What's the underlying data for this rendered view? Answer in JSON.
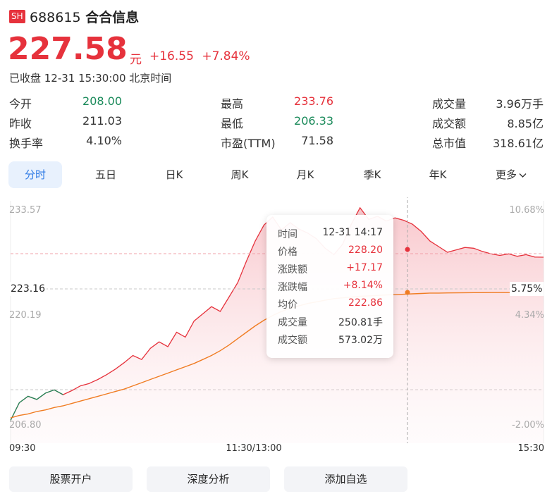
{
  "header": {
    "exchange_badge": "SH",
    "code": "688615",
    "name": "合合信息",
    "price": "227.58",
    "unit": "元",
    "change": "+16.55",
    "change_pct": "+7.84%",
    "status": "已收盘 12-31 15:30:00 北京时间"
  },
  "stats": [
    {
      "label": "今开",
      "value": "208.00",
      "tone": "down"
    },
    {
      "label": "最高",
      "value": "233.76",
      "tone": "up"
    },
    {
      "label": "成交量",
      "value": "3.96万手",
      "tone": "neutral"
    },
    {
      "label": "昨收",
      "value": "211.03",
      "tone": "neutral"
    },
    {
      "label": "最低",
      "value": "206.33",
      "tone": "down"
    },
    {
      "label": "成交额",
      "value": "8.85亿",
      "tone": "neutral"
    },
    {
      "label": "换手率",
      "value": "4.10%",
      "tone": "neutral"
    },
    {
      "label": "市盈(TTM)",
      "value": "71.58",
      "tone": "neutral"
    },
    {
      "label": "总市值",
      "value": "318.61亿",
      "tone": "neutral"
    }
  ],
  "tabs": [
    {
      "label": "分时",
      "active": true
    },
    {
      "label": "五日",
      "active": false
    },
    {
      "label": "日K",
      "active": false
    },
    {
      "label": "周K",
      "active": false
    },
    {
      "label": "月K",
      "active": false
    },
    {
      "label": "季K",
      "active": false
    },
    {
      "label": "年K",
      "active": false
    },
    {
      "label": "更多",
      "active": false
    }
  ],
  "chart_data": {
    "type": "line",
    "y_left_ticks": [
      "233.57",
      "220.19",
      "206.80"
    ],
    "y_right_ticks": [
      "10.68%",
      "4.34%",
      "-2.00%"
    ],
    "x_ticks": [
      "09:30",
      "11:30/13:00",
      "15:30"
    ],
    "ylim": [
      206.8,
      233.57
    ],
    "prev_close": 211.03,
    "crosshair_price_label": "223.16",
    "crosshair_pct_label": "5.75%",
    "series": [
      {
        "name": "价格",
        "color": "#e6323c",
        "values": [
          207.2,
          209.4,
          210.2,
          209.8,
          210.6,
          211.0,
          210.4,
          210.9,
          211.5,
          211.8,
          212.3,
          212.9,
          213.6,
          214.4,
          215.3,
          214.8,
          216.2,
          217.0,
          216.4,
          218.2,
          217.6,
          219.6,
          220.5,
          221.4,
          220.8,
          222.6,
          224.4,
          227.1,
          229.6,
          231.6,
          232.6,
          231.0,
          231.9,
          231.1,
          230.6,
          229.9,
          228.7,
          227.9,
          229.2,
          231.7,
          233.76,
          232.3,
          232.7,
          232.1,
          232.5,
          232.2,
          231.7,
          230.8,
          229.6,
          228.9,
          228.2,
          228.5,
          228.8,
          228.7,
          228.3,
          228.0,
          227.8,
          228.0,
          227.7,
          227.9,
          227.6,
          227.58
        ]
      },
      {
        "name": "均价",
        "color": "#f07c22",
        "values": [
          207.5,
          207.8,
          208.0,
          208.3,
          208.5,
          208.8,
          209.0,
          209.3,
          209.6,
          209.9,
          210.2,
          210.5,
          210.8,
          211.1,
          211.5,
          211.9,
          212.3,
          212.7,
          213.1,
          213.5,
          213.9,
          214.3,
          214.8,
          215.3,
          215.9,
          216.6,
          217.4,
          218.2,
          219.0,
          219.7,
          220.3,
          220.8,
          221.2,
          221.5,
          221.8,
          222.0,
          222.2,
          222.4,
          222.5,
          222.6,
          222.7,
          222.75,
          222.8,
          222.86,
          222.9,
          222.95,
          223.0,
          223.05,
          223.1,
          223.1,
          223.12,
          223.13,
          223.14,
          223.15,
          223.15,
          223.16,
          223.16,
          223.16,
          223.16,
          223.16,
          223.16,
          223.16
        ]
      }
    ]
  },
  "tooltip": [
    {
      "label": "时间",
      "value": "12-31 14:17",
      "tone": "neutral"
    },
    {
      "label": "价格",
      "value": "228.20",
      "tone": "up"
    },
    {
      "label": "涨跌额",
      "value": "+17.17",
      "tone": "up"
    },
    {
      "label": "涨跌幅",
      "value": "+8.14%",
      "tone": "up"
    },
    {
      "label": "均价",
      "value": "222.86",
      "tone": "up"
    },
    {
      "label": "成交量",
      "value": "250.81手",
      "tone": "neutral"
    },
    {
      "label": "成交额",
      "value": "573.02万",
      "tone": "neutral"
    }
  ],
  "buttons": [
    "股票开户",
    "深度分析",
    "添加自选"
  ]
}
